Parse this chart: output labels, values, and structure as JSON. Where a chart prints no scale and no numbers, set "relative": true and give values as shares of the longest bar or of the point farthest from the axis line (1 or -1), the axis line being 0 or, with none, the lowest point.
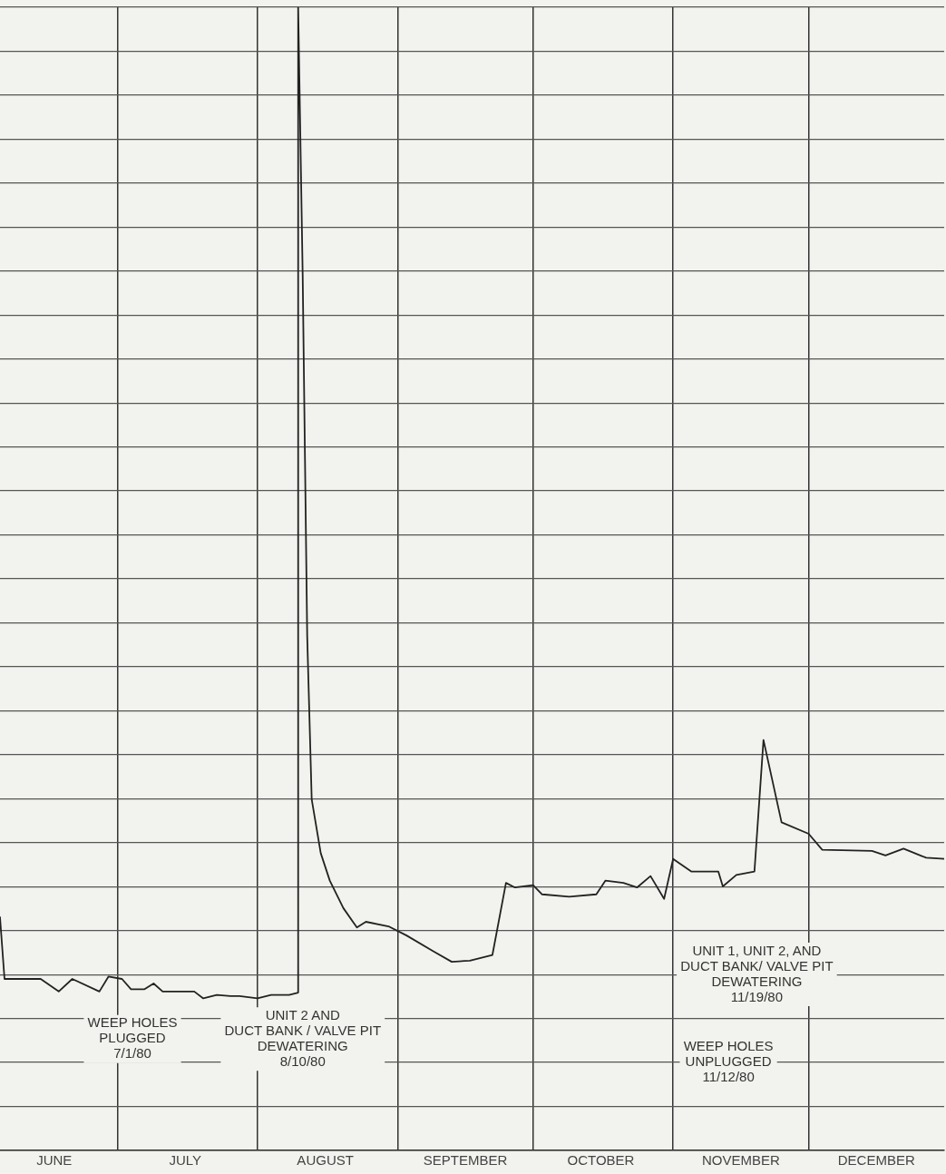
{
  "chart_data": {
    "type": "line",
    "relative": true,
    "grid": true,
    "legend": false,
    "marker": "none",
    "line_style": "solid",
    "xlim": [
      "--06-05",
      "--12-31"
    ],
    "xticks": [
      {
        "value": "--06-17",
        "label": "JUNE"
      },
      {
        "value": "--07-01",
        "label": null
      },
      {
        "value": "--07-16",
        "label": "JULY"
      },
      {
        "value": "--08-01",
        "label": null
      },
      {
        "value": "--08-16",
        "label": "AUGUST"
      },
      {
        "value": "--09-01",
        "label": null
      },
      {
        "value": "--09-16",
        "label": "SEPTEMBER"
      },
      {
        "value": "--10-01",
        "label": null
      },
      {
        "value": "--10-16",
        "label": "OCTOBER"
      },
      {
        "value": "--11-01",
        "label": null
      },
      {
        "value": "--11-16",
        "label": "NOVEMBER"
      },
      {
        "value": "--12-01",
        "label": null
      },
      {
        "value": "--12-16",
        "label": "DECEMBER"
      }
    ],
    "series": [
      {
        "color": "#222222",
        "x": [
          "--06-05",
          "--06-06",
          "--06-09",
          "--06-14",
          "--06-18",
          "--06-21",
          "--06-27",
          "--06-29",
          "--07-02",
          "--07-04",
          "--07-07",
          "--07-09",
          "--07-11",
          "--07-18",
          "--07-20",
          "--07-23",
          "--07-26",
          "--07-28",
          "--08-01",
          "--08-04",
          "--08-08",
          "--08-10",
          "--08-10",
          "--08-11",
          "--08-12",
          "--08-13",
          "--08-15",
          "--08-17",
          "--08-20",
          "--08-23",
          "--08-25",
          "--08-30",
          "--09-03",
          "--09-09",
          "--09-13",
          "--09-17",
          "--09-22",
          "--09-25",
          "--09-27",
          "--10-01",
          "--10-03",
          "--10-09",
          "--10-15",
          "--10-17",
          "--10-21",
          "--10-24",
          "--10-27",
          "--10-30",
          "--11-01",
          "--11-05",
          "--11-11",
          "--11-12",
          "--11-15",
          "--11-19",
          "--11-21",
          "--11-25",
          "--12-01",
          "--12-04",
          "--12-15",
          "--12-18",
          "--12-22",
          "--12-27",
          "--12-31"
        ],
        "values": [
          0.204,
          0.15,
          0.15,
          0.15,
          0.139,
          0.15,
          0.139,
          0.152,
          0.15,
          0.141,
          0.141,
          0.146,
          0.139,
          0.139,
          0.133,
          0.136,
          0.135,
          0.135,
          0.133,
          0.136,
          0.136,
          0.138,
          1.0,
          0.766,
          0.45,
          0.307,
          0.26,
          0.236,
          0.212,
          0.195,
          0.2,
          0.196,
          0.188,
          0.174,
          0.165,
          0.166,
          0.171,
          0.234,
          0.23,
          0.232,
          0.224,
          0.222,
          0.224,
          0.236,
          0.234,
          0.23,
          0.24,
          0.22,
          0.255,
          0.244,
          0.244,
          0.231,
          0.241,
          0.244,
          0.359,
          0.287,
          0.277,
          0.263,
          0.262,
          0.258,
          0.264,
          0.256,
          0.255
        ]
      }
    ],
    "annotations": [
      "WEEP HOLES\nPLUGGED\n7/1/80",
      "UNIT 2 AND\nDUCT BANK / VALVE PIT\nDEWATERING\n8/10/80",
      "UNIT 1, UNIT 2, AND\nDUCT BANK/ VALVE PIT\nDEWATERING\n11/19/80",
      "WEEP HOLES\nUNPLUGGED\n11/12/80"
    ]
  }
}
